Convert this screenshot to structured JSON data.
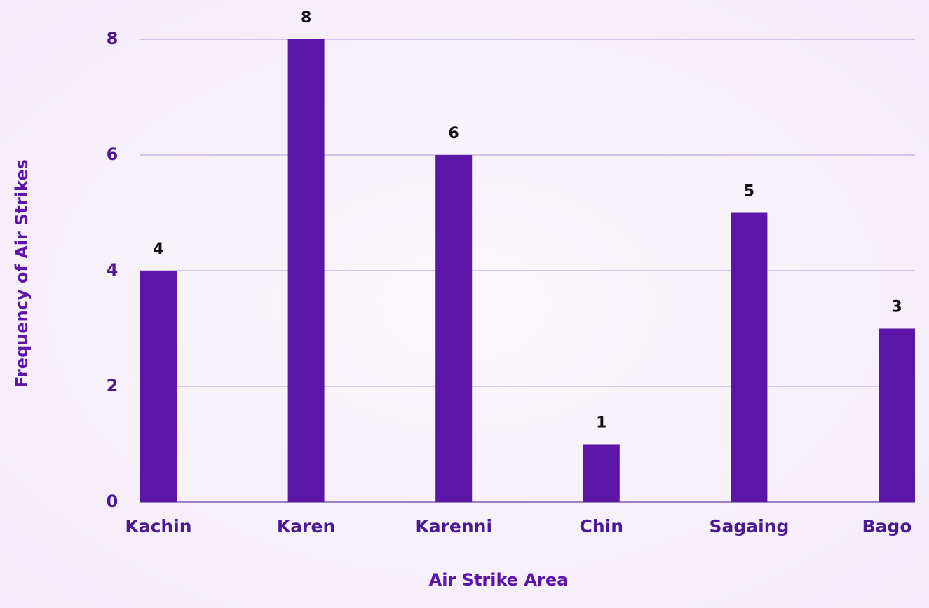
{
  "chart_data": {
    "type": "bar",
    "x_label": "Air Strike Area",
    "y_label": "Frequency of  Air Strikes",
    "categories": [
      "Kachin",
      "Karen",
      "Karenni",
      "Chin",
      "Sagaing",
      "Bago"
    ],
    "values": [
      4,
      8,
      6,
      1,
      5,
      3
    ],
    "color": "#5b16a8",
    "ylim": [
      0,
      8
    ],
    "yticks": [
      0,
      2,
      4,
      6,
      8
    ],
    "grid": true
  }
}
